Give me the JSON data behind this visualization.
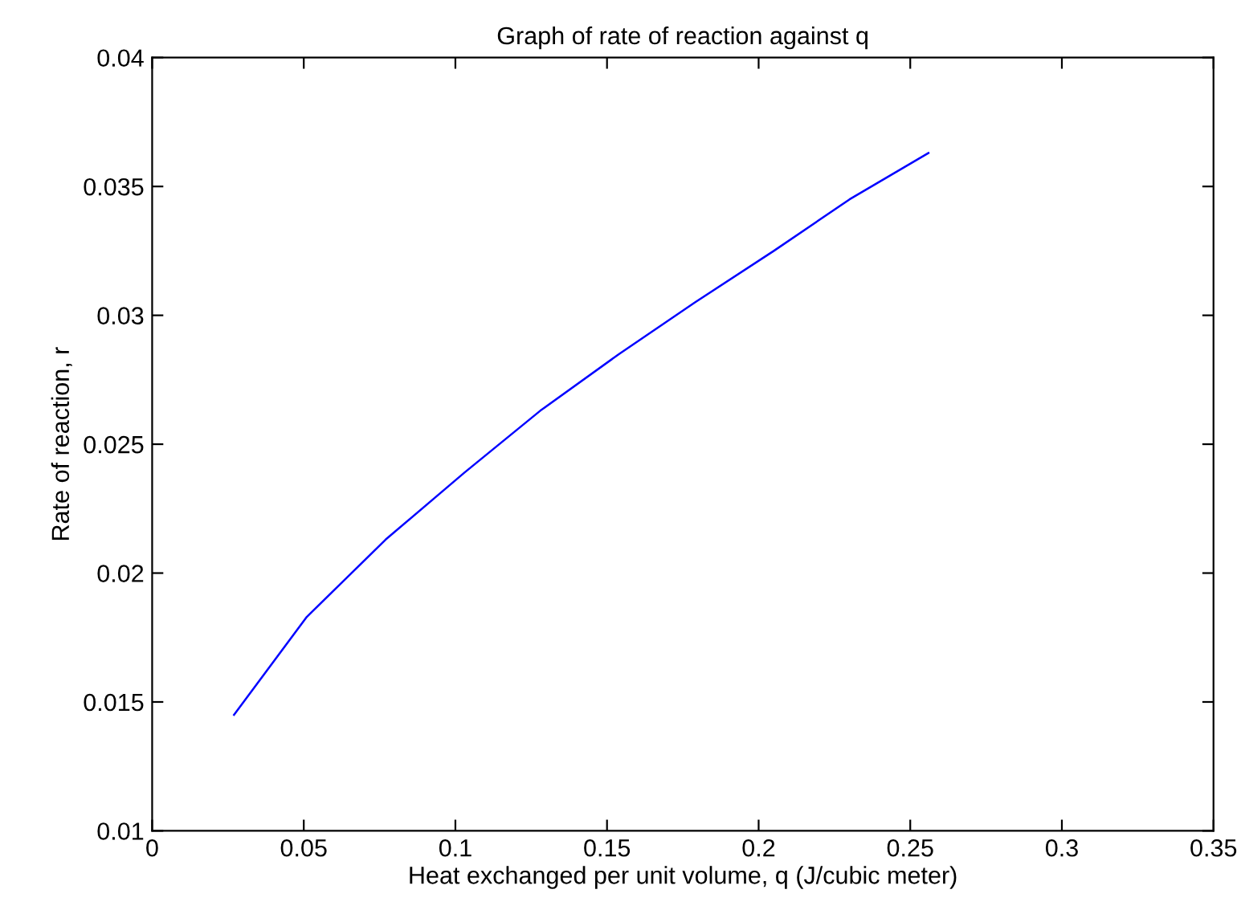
{
  "chart_data": {
    "type": "line",
    "title": "Graph of rate of reaction against q",
    "xlabel": "Heat exchanged per unit volume, q (J/cubic meter)",
    "ylabel": "Rate of reaction, r",
    "x": [
      0.027,
      0.051,
      0.077,
      0.103,
      0.128,
      0.154,
      0.179,
      0.205,
      0.23,
      0.256
    ],
    "series": [
      {
        "color": "#0000ff",
        "values": [
          0.0145,
          0.0183,
          0.0213,
          0.0239,
          0.0263,
          0.0285,
          0.0305,
          0.0325,
          0.0345,
          0.0363
        ]
      }
    ],
    "xlim": [
      0,
      0.35
    ],
    "ylim": [
      0.01,
      0.04
    ],
    "xticks": [
      0,
      0.05,
      0.1,
      0.15,
      0.2,
      0.25,
      0.3,
      0.35
    ],
    "yticks": [
      0.01,
      0.015,
      0.02,
      0.025,
      0.03,
      0.035,
      0.04
    ],
    "grid": false
  }
}
